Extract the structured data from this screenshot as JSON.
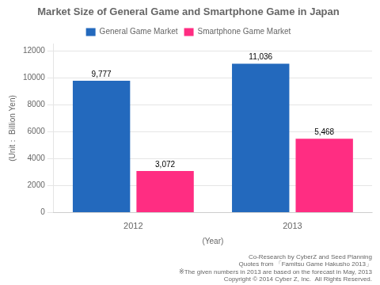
{
  "chart_data": {
    "type": "bar",
    "title": "Market Size of General Game and Smartphone Game in Japan",
    "ylabel": "(Unit： Billion Yen)",
    "xlabel": "(Year)",
    "categories": [
      "2012",
      "2013"
    ],
    "series": [
      {
        "name": "General Game Market",
        "color": "#2369bd",
        "values": [
          9777,
          11036
        ],
        "value_labels": [
          "9,777",
          "11,036"
        ]
      },
      {
        "name": "Smartphone Game Market",
        "color": "#ff2d82",
        "values": [
          3072,
          5468
        ],
        "value_labels": [
          "3,072",
          "5,468"
        ]
      }
    ],
    "ylim": [
      0,
      12500
    ],
    "yticks": [
      0,
      2000,
      4000,
      6000,
      8000,
      10000,
      12000
    ],
    "grid": true,
    "legend": "top",
    "data_labels": true,
    "annotations": [
      "Co-Research by CyberZ and Seed Planning",
      "Quotes from 「Famitsu Game Hakusho 2013」",
      "※The given numbers in 2013 are based on the forecast in May, 2013",
      "Copyright © 2014 Cyber Z, Inc.  All Rights Reserved."
    ]
  }
}
